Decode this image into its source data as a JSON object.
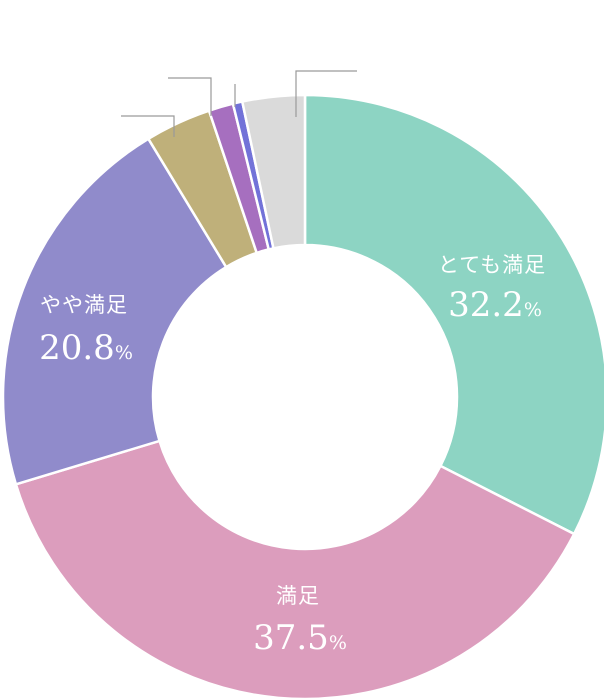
{
  "chart_data": {
    "type": "pie",
    "donut": true,
    "unit": "%",
    "categories": [
      "とても満足",
      "満足",
      "やや満足",
      "",
      "",
      "",
      ""
    ],
    "values": [
      32.2,
      37.5,
      20.8,
      3.5,
      1.3,
      0.5,
      3.3
    ],
    "colors": [
      "#8dd4c3",
      "#dc9dbd",
      "#908bcb",
      "#bfb07a",
      "#a66fbf",
      "#7272d8",
      "#dadada"
    ],
    "show_label": [
      true,
      true,
      true,
      false,
      false,
      false,
      false
    ],
    "title": "",
    "legend": "none"
  }
}
